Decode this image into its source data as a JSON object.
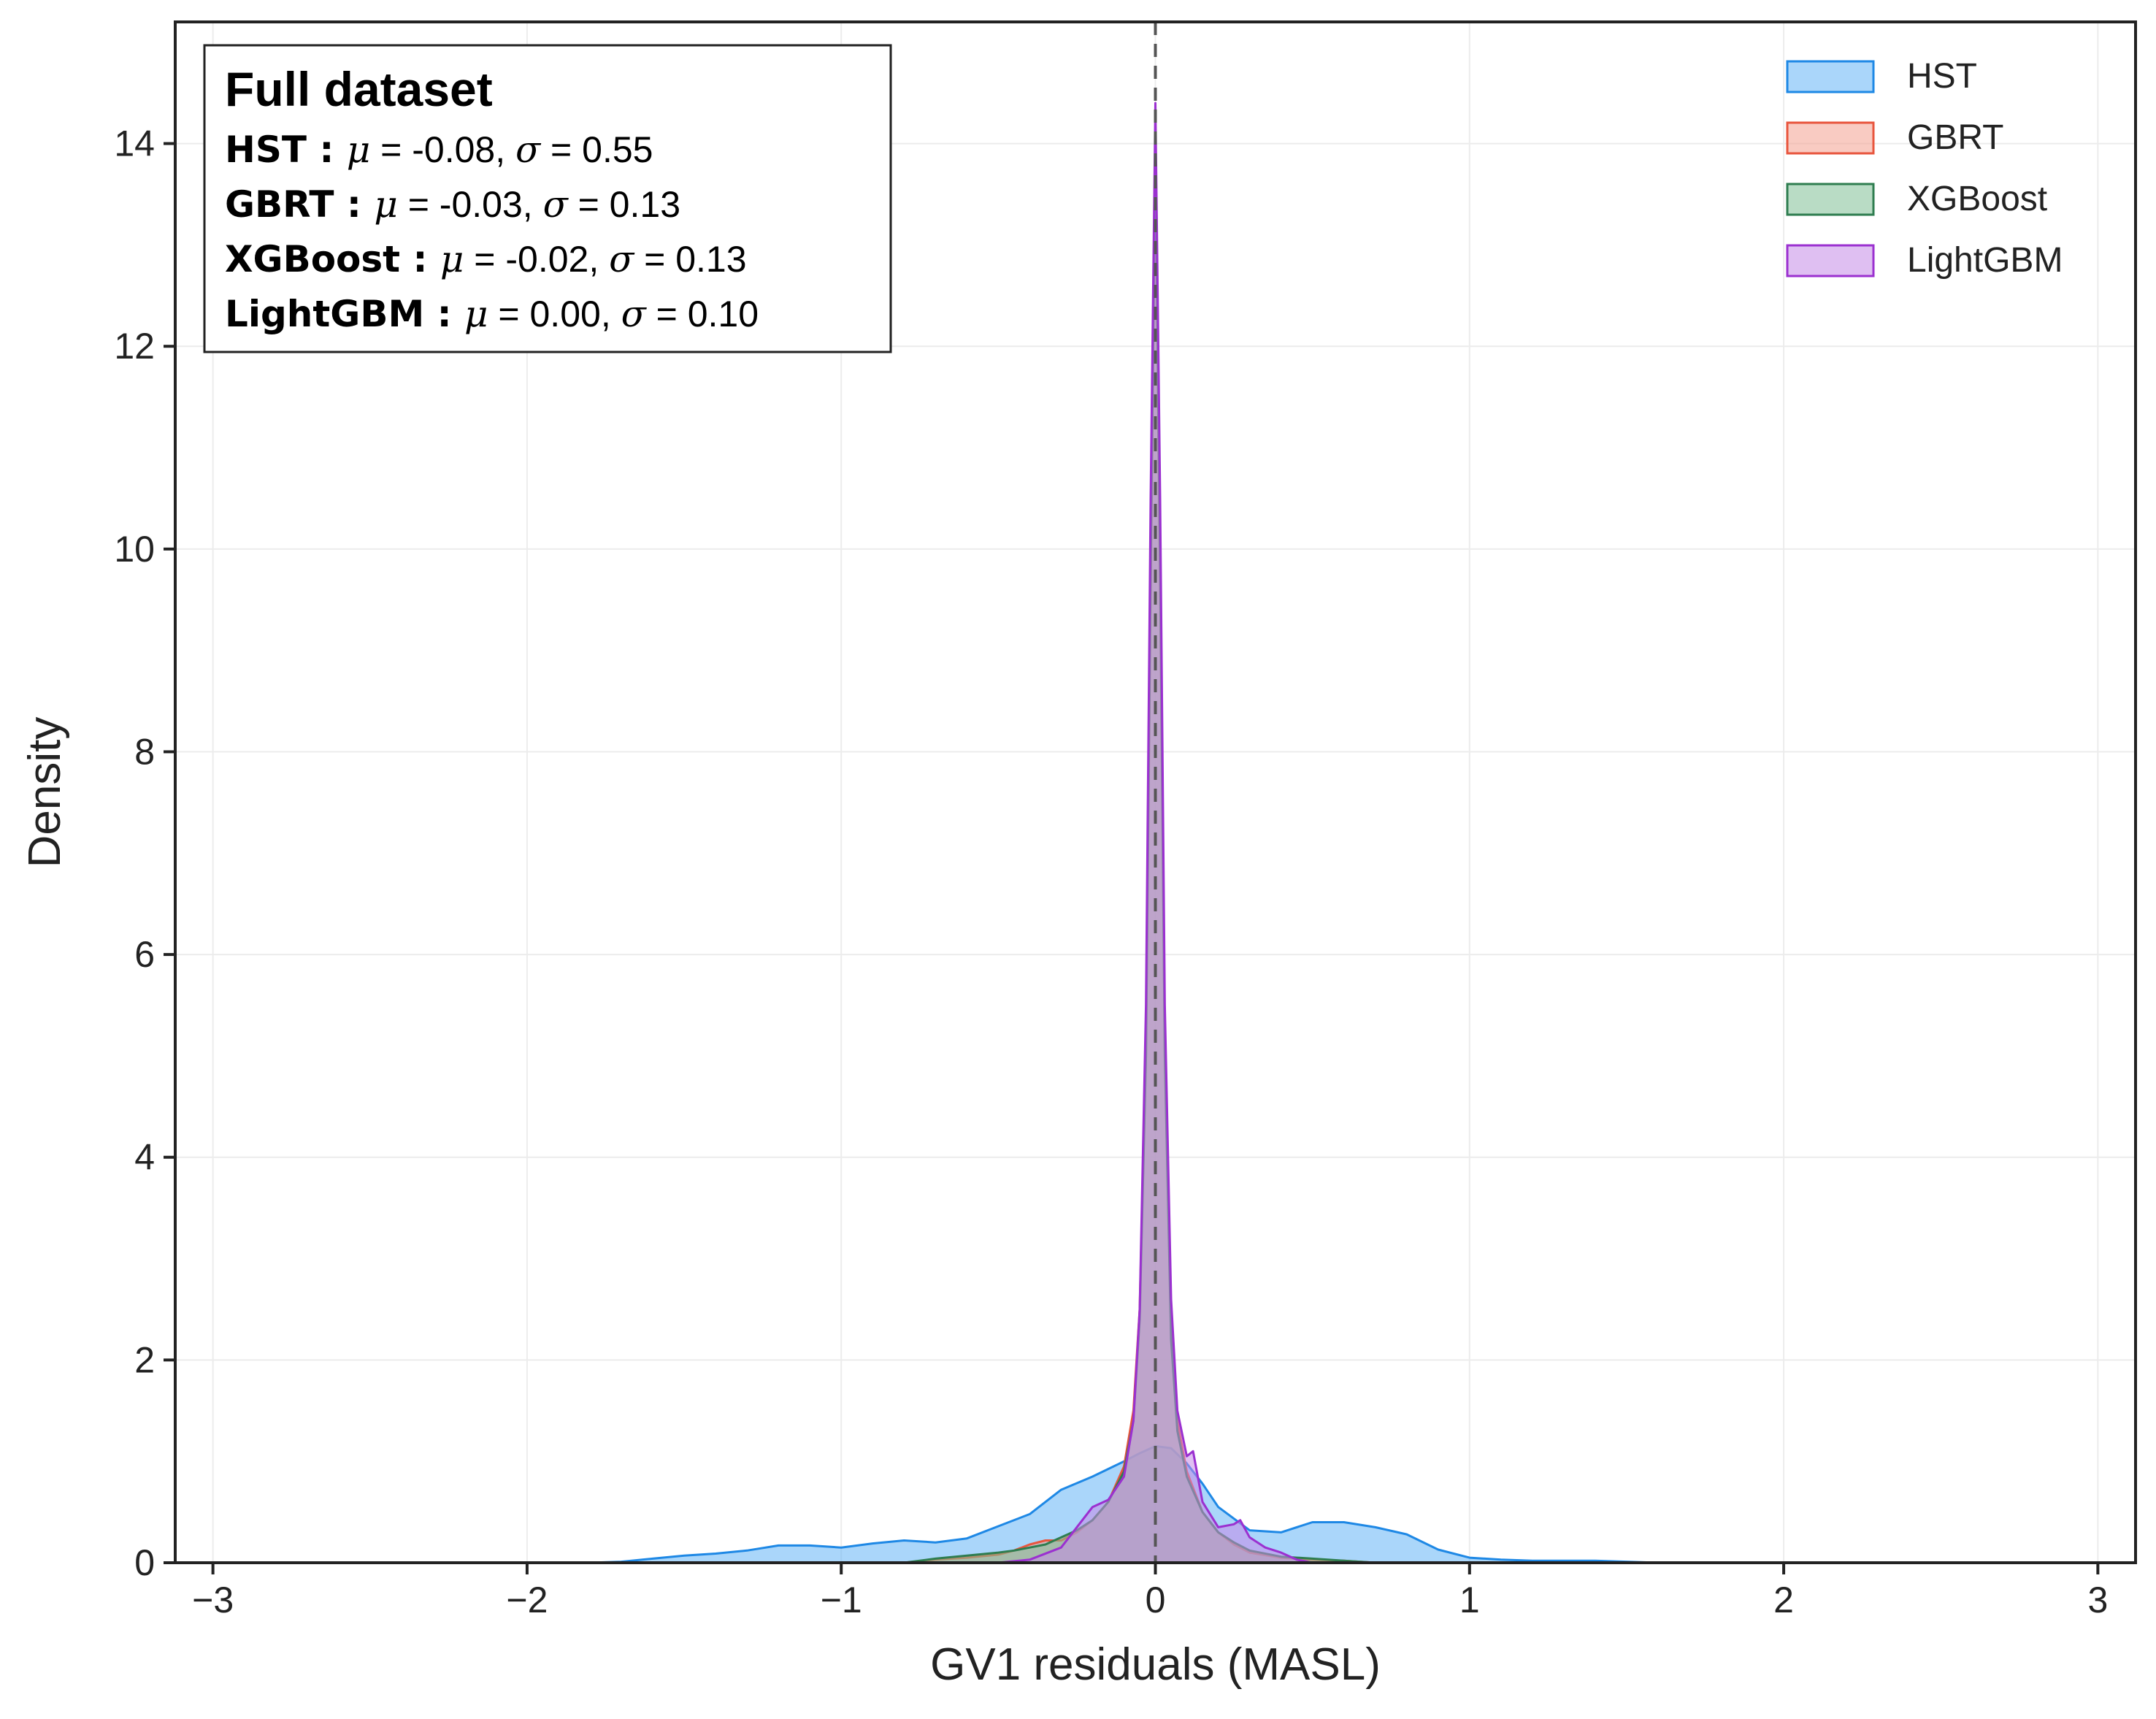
{
  "chart_data": {
    "type": "area",
    "title": "",
    "xlabel": "GV1 residuals (MASL)",
    "ylabel": "Density",
    "xlim": [
      -3.12,
      3.12
    ],
    "ylim": [
      0,
      15.2
    ],
    "xticks": [
      -3,
      -2,
      -1,
      0,
      1,
      2,
      3
    ],
    "xtick_labels": [
      "−3",
      "−2",
      "−1",
      "0",
      "1",
      "2",
      "3"
    ],
    "yticks": [
      0,
      2,
      4,
      6,
      8,
      10,
      12,
      14
    ],
    "ytick_labels": [
      "0",
      "2",
      "4",
      "6",
      "8",
      "10",
      "12",
      "14"
    ],
    "grid": true,
    "legend_position": "top-right",
    "reference_line": {
      "x": 0,
      "style": "dashed"
    },
    "stats_box": {
      "title": "Full dataset",
      "rows": [
        {
          "name": "HST :",
          "mu_label": "μ",
          "mu": "-0.08",
          "sigma_label": "σ",
          "sigma": "0.55"
        },
        {
          "name": "GBRT :",
          "mu_label": "μ",
          "mu": "-0.03",
          "sigma_label": "σ",
          "sigma": "0.13"
        },
        {
          "name": "XGBoost :",
          "mu_label": "μ",
          "mu": "-0.02",
          "sigma_label": "σ",
          "sigma": "0.13"
        },
        {
          "name": "LightGBM :",
          "mu_label": "μ",
          "mu": "0.00",
          "sigma_label": "σ",
          "sigma": "0.10"
        }
      ]
    },
    "series": [
      {
        "name": "HST",
        "color": "#1e88e5",
        "fill": "#64b5f6",
        "points": [
          [
            -1.8,
            0
          ],
          [
            -1.7,
            0.01
          ],
          [
            -1.6,
            0.04
          ],
          [
            -1.5,
            0.07
          ],
          [
            -1.4,
            0.09
          ],
          [
            -1.3,
            0.12
          ],
          [
            -1.2,
            0.17
          ],
          [
            -1.1,
            0.17
          ],
          [
            -1.0,
            0.15
          ],
          [
            -0.9,
            0.19
          ],
          [
            -0.8,
            0.22
          ],
          [
            -0.7,
            0.2
          ],
          [
            -0.6,
            0.24
          ],
          [
            -0.5,
            0.36
          ],
          [
            -0.4,
            0.48
          ],
          [
            -0.3,
            0.72
          ],
          [
            -0.2,
            0.85
          ],
          [
            -0.1,
            1.0
          ],
          [
            -0.05,
            1.08
          ],
          [
            0.0,
            1.15
          ],
          [
            0.05,
            1.13
          ],
          [
            0.1,
            0.98
          ],
          [
            0.15,
            0.78
          ],
          [
            0.2,
            0.55
          ],
          [
            0.3,
            0.32
          ],
          [
            0.4,
            0.3
          ],
          [
            0.5,
            0.4
          ],
          [
            0.6,
            0.4
          ],
          [
            0.7,
            0.35
          ],
          [
            0.8,
            0.28
          ],
          [
            0.9,
            0.13
          ],
          [
            1.0,
            0.05
          ],
          [
            1.1,
            0.03
          ],
          [
            1.2,
            0.02
          ],
          [
            1.3,
            0.02
          ],
          [
            1.4,
            0.02
          ],
          [
            1.5,
            0.01
          ],
          [
            1.6,
            0.0
          ]
        ]
      },
      {
        "name": "GBRT",
        "color": "#e8553d",
        "fill": "#f4a090",
        "points": [
          [
            -0.8,
            0
          ],
          [
            -0.7,
            0.03
          ],
          [
            -0.6,
            0.05
          ],
          [
            -0.5,
            0.08
          ],
          [
            -0.45,
            0.12
          ],
          [
            -0.4,
            0.18
          ],
          [
            -0.35,
            0.22
          ],
          [
            -0.3,
            0.22
          ],
          [
            -0.25,
            0.3
          ],
          [
            -0.2,
            0.42
          ],
          [
            -0.15,
            0.6
          ],
          [
            -0.1,
            0.95
          ],
          [
            -0.07,
            1.5
          ],
          [
            -0.05,
            2.5
          ],
          [
            -0.03,
            5.0
          ],
          [
            -0.015,
            9.5
          ],
          [
            0.0,
            13.8
          ],
          [
            0.015,
            9.5
          ],
          [
            0.03,
            5.0
          ],
          [
            0.05,
            2.3
          ],
          [
            0.07,
            1.4
          ],
          [
            0.1,
            0.9
          ],
          [
            0.15,
            0.5
          ],
          [
            0.2,
            0.3
          ],
          [
            0.25,
            0.18
          ],
          [
            0.3,
            0.1
          ],
          [
            0.4,
            0.05
          ],
          [
            0.5,
            0.03
          ],
          [
            0.6,
            0.02
          ],
          [
            0.7,
            0.0
          ]
        ]
      },
      {
        "name": "XGBoost",
        "color": "#2e7d4f",
        "fill": "#7fbf95",
        "points": [
          [
            -0.8,
            0
          ],
          [
            -0.7,
            0.04
          ],
          [
            -0.6,
            0.07
          ],
          [
            -0.5,
            0.1
          ],
          [
            -0.45,
            0.12
          ],
          [
            -0.4,
            0.15
          ],
          [
            -0.35,
            0.18
          ],
          [
            -0.3,
            0.25
          ],
          [
            -0.25,
            0.32
          ],
          [
            -0.2,
            0.42
          ],
          [
            -0.15,
            0.6
          ],
          [
            -0.1,
            0.9
          ],
          [
            -0.07,
            1.4
          ],
          [
            -0.05,
            2.4
          ],
          [
            -0.03,
            5.0
          ],
          [
            -0.015,
            9.8
          ],
          [
            0.0,
            14.0
          ],
          [
            0.015,
            9.8
          ],
          [
            0.03,
            5.0
          ],
          [
            0.05,
            2.2
          ],
          [
            0.07,
            1.3
          ],
          [
            0.1,
            0.85
          ],
          [
            0.15,
            0.5
          ],
          [
            0.2,
            0.3
          ],
          [
            0.25,
            0.2
          ],
          [
            0.3,
            0.12
          ],
          [
            0.4,
            0.06
          ],
          [
            0.5,
            0.04
          ],
          [
            0.6,
            0.02
          ],
          [
            0.7,
            0.0
          ]
        ]
      },
      {
        "name": "LightGBM",
        "color": "#9b30d0",
        "fill": "#c58be8",
        "points": [
          [
            -0.5,
            0
          ],
          [
            -0.4,
            0.03
          ],
          [
            -0.3,
            0.15
          ],
          [
            -0.25,
            0.35
          ],
          [
            -0.2,
            0.55
          ],
          [
            -0.15,
            0.62
          ],
          [
            -0.1,
            0.85
          ],
          [
            -0.07,
            1.4
          ],
          [
            -0.05,
            2.5
          ],
          [
            -0.03,
            5.5
          ],
          [
            -0.015,
            10.5
          ],
          [
            0.0,
            14.4
          ],
          [
            0.015,
            10.5
          ],
          [
            0.03,
            5.5
          ],
          [
            0.05,
            2.6
          ],
          [
            0.07,
            1.5
          ],
          [
            0.1,
            1.05
          ],
          [
            0.12,
            1.1
          ],
          [
            0.15,
            0.6
          ],
          [
            0.2,
            0.35
          ],
          [
            0.25,
            0.38
          ],
          [
            0.27,
            0.42
          ],
          [
            0.3,
            0.25
          ],
          [
            0.35,
            0.15
          ],
          [
            0.4,
            0.1
          ],
          [
            0.45,
            0.03
          ],
          [
            0.5,
            0.0
          ]
        ]
      }
    ]
  }
}
